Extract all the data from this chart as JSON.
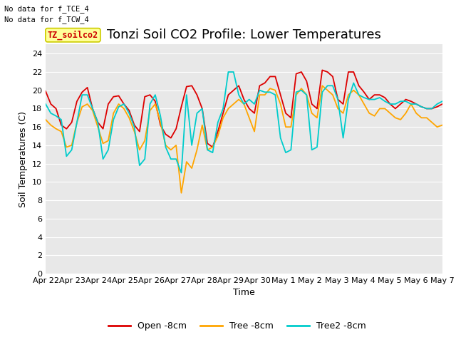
{
  "title": "Tonzi Soil CO2 Profile: Lower Temperatures",
  "xlabel": "Time",
  "ylabel": "Soil Temperatures (C)",
  "top_text": [
    "No data for f_TCE_4",
    "No data for f_TCW_4"
  ],
  "legend_label_text": "TZ_soilco2",
  "ylim": [
    0,
    25
  ],
  "yticks": [
    0,
    2,
    4,
    6,
    8,
    10,
    12,
    14,
    16,
    18,
    20,
    22,
    24
  ],
  "xtick_labels": [
    "Apr 22",
    "Apr 23",
    "Apr 24",
    "Apr 25",
    "Apr 26",
    "Apr 27",
    "Apr 28",
    "Apr 29",
    "Apr 30",
    "May 1",
    "May 2",
    "May 3",
    "May 4",
    "May 5",
    "May 6",
    "May 7"
  ],
  "bg_color": "#e8e8e8",
  "grid_color": "white",
  "series_colors": [
    "#dd0000",
    "#ffa500",
    "#00cccc"
  ],
  "series_labels": [
    "Open -8cm",
    "Tree -8cm",
    "Tree2 -8cm"
  ],
  "title_fontsize": 13,
  "label_fontsize": 9,
  "tick_fontsize": 8,
  "line_width": 1.3,
  "open_8cm": [
    19.9,
    18.5,
    18.0,
    16.2,
    15.8,
    16.5,
    18.8,
    19.8,
    20.3,
    18.0,
    16.5,
    15.8,
    18.5,
    19.3,
    19.4,
    18.5,
    17.8,
    16.2,
    15.5,
    19.3,
    19.5,
    18.8,
    16.2,
    15.2,
    14.8,
    15.8,
    18.2,
    20.4,
    20.5,
    19.5,
    18.0,
    14.2,
    13.8,
    15.5,
    17.5,
    19.5,
    20.0,
    20.5,
    19.0,
    18.0,
    17.5,
    20.5,
    20.8,
    21.5,
    21.5,
    19.5,
    17.5,
    17.0,
    21.8,
    22.0,
    21.0,
    18.5,
    18.0,
    22.2,
    22.0,
    21.5,
    19.0,
    18.5,
    22.0,
    22.0,
    20.5,
    19.8,
    19.0,
    19.5,
    19.5,
    19.2,
    18.5,
    18.0,
    18.5,
    19.0,
    18.8,
    18.5,
    18.2,
    18.0,
    18.0,
    18.2,
    18.5
  ],
  "tree_8cm": [
    16.8,
    16.2,
    15.8,
    15.5,
    13.8,
    14.0,
    16.5,
    18.2,
    18.5,
    17.8,
    16.0,
    14.2,
    14.5,
    17.5,
    18.5,
    18.0,
    17.0,
    15.5,
    13.5,
    14.5,
    17.8,
    18.5,
    16.5,
    14.0,
    13.5,
    14.0,
    8.8,
    12.2,
    11.5,
    13.5,
    16.2,
    13.5,
    13.8,
    15.0,
    17.0,
    18.0,
    18.5,
    19.0,
    18.5,
    17.0,
    15.5,
    19.5,
    19.5,
    20.2,
    20.0,
    18.5,
    16.0,
    16.0,
    19.5,
    20.2,
    19.5,
    17.5,
    17.0,
    20.5,
    20.0,
    19.5,
    18.0,
    17.5,
    19.5,
    20.0,
    19.5,
    18.5,
    17.5,
    17.2,
    18.0,
    18.0,
    17.5,
    17.0,
    16.8,
    17.5,
    18.5,
    17.5,
    17.0,
    17.0,
    16.5,
    16.0,
    16.2
  ],
  "tree2_8cm": [
    18.5,
    17.5,
    17.2,
    16.8,
    12.8,
    13.5,
    16.5,
    19.5,
    19.5,
    18.0,
    16.5,
    12.5,
    13.5,
    16.8,
    18.2,
    18.5,
    17.5,
    16.0,
    11.8,
    12.5,
    18.5,
    19.5,
    17.2,
    13.8,
    12.5,
    12.5,
    11.0,
    19.5,
    14.0,
    17.5,
    18.0,
    13.5,
    13.2,
    16.5,
    18.0,
    22.0,
    22.0,
    19.5,
    18.5,
    19.0,
    18.5,
    20.0,
    19.8,
    19.8,
    19.5,
    14.8,
    13.2,
    13.5,
    19.8,
    20.0,
    19.5,
    13.5,
    13.8,
    19.8,
    20.5,
    20.5,
    19.0,
    14.8,
    19.0,
    20.8,
    19.5,
    19.2,
    19.0,
    19.0,
    19.2,
    18.8,
    18.5,
    18.5,
    18.8,
    18.8,
    18.5,
    18.5,
    18.2,
    18.0,
    18.0,
    18.5,
    18.8
  ]
}
